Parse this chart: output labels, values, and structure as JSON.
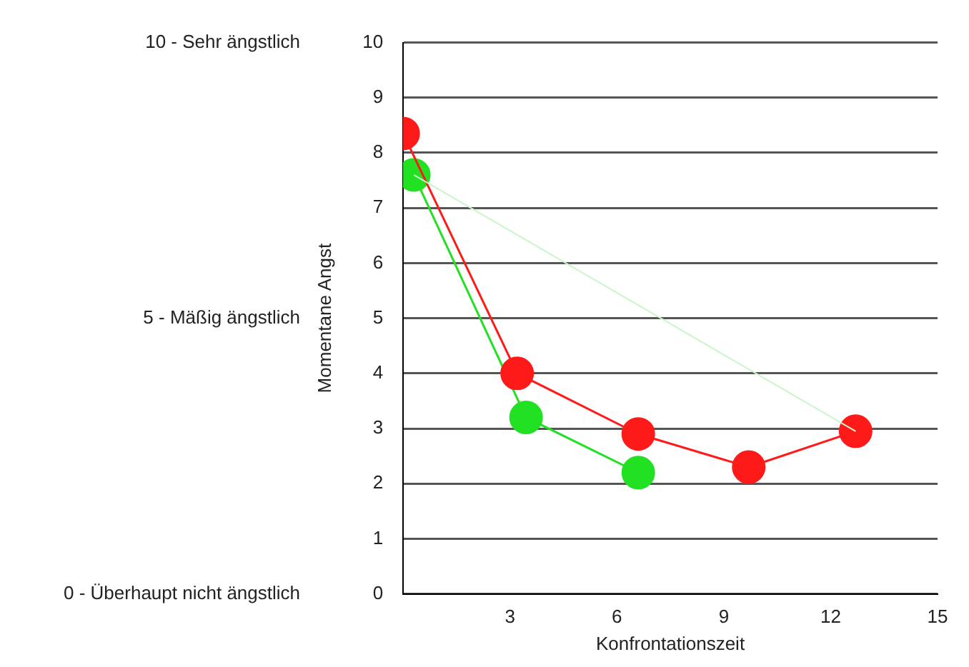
{
  "chart_data": {
    "type": "line",
    "xlabel": "Konfrontationszeit",
    "ylabel": "Momentane Angst",
    "xlim": [
      0,
      15
    ],
    "xticks": [
      3,
      6,
      9,
      12,
      15
    ],
    "ylim": [
      0,
      10
    ],
    "yticks": [
      0,
      1,
      2,
      3,
      4,
      5,
      6,
      7,
      8,
      9,
      10
    ],
    "y2lim": [
      0,
      10
    ],
    "y2ticks": [
      {
        "value": 0,
        "label": "0 - Überhaupt nicht ängstlich"
      },
      {
        "value": 5,
        "label": "5 - Mäßig ängstlich"
      },
      {
        "value": 10,
        "label": "10 - Sehr ängstlich"
      }
    ],
    "grid": "y",
    "legend": false,
    "marker": "circle",
    "line_style": "solid",
    "series": [
      {
        "color": "#ccf5cc",
        "x": [
          0.3,
          12.7
        ],
        "values": [
          7.6,
          2.95
        ],
        "marker": "none"
      },
      {
        "color": "#ff1a1a",
        "x": [
          0,
          3.2,
          6.6,
          9.7,
          12.7
        ],
        "values": [
          8.35,
          4.0,
          2.9,
          2.3,
          2.95
        ]
      },
      {
        "color": "#22e022",
        "x": [
          0.3,
          3.45,
          6.6
        ],
        "values": [
          7.6,
          3.2,
          2.2
        ]
      }
    ]
  }
}
